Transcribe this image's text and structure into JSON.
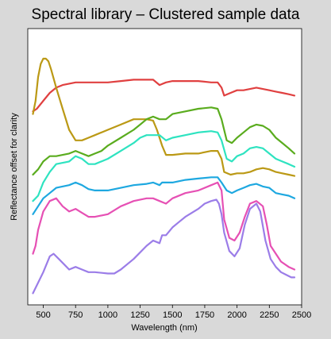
{
  "chart_data": {
    "type": "line",
    "title": "Spectral library – Clustered sample data",
    "xlabel": "Wavelength (nm)",
    "ylabel": "Reflectance offset for clarity",
    "xlim": [
      380,
      2500
    ],
    "ylim": [
      0,
      1
    ],
    "xticks": [
      500,
      750,
      1000,
      1250,
      1500,
      1750,
      2000,
      2250,
      2500
    ],
    "xtick_labels": [
      "500",
      "750",
      "1000",
      "1250",
      "1500",
      "1750",
      "2000",
      "2250",
      "2500"
    ],
    "yticks_shown": false,
    "grid": false,
    "legend": "none",
    "series": [
      {
        "color": "#e04040",
        "points": [
          [
            420,
            0.71
          ],
          [
            450,
            0.72
          ],
          [
            500,
            0.75
          ],
          [
            550,
            0.78
          ],
          [
            600,
            0.8
          ],
          [
            650,
            0.81
          ],
          [
            700,
            0.815
          ],
          [
            750,
            0.82
          ],
          [
            800,
            0.82
          ],
          [
            900,
            0.82
          ],
          [
            1000,
            0.82
          ],
          [
            1100,
            0.825
          ],
          [
            1200,
            0.83
          ],
          [
            1300,
            0.83
          ],
          [
            1350,
            0.83
          ],
          [
            1400,
            0.81
          ],
          [
            1450,
            0.82
          ],
          [
            1500,
            0.825
          ],
          [
            1600,
            0.825
          ],
          [
            1700,
            0.825
          ],
          [
            1800,
            0.82
          ],
          [
            1850,
            0.82
          ],
          [
            1880,
            0.8
          ],
          [
            1900,
            0.77
          ],
          [
            1950,
            0.78
          ],
          [
            2000,
            0.79
          ],
          [
            2050,
            0.79
          ],
          [
            2100,
            0.795
          ],
          [
            2150,
            0.8
          ],
          [
            2200,
            0.795
          ],
          [
            2250,
            0.79
          ],
          [
            2300,
            0.785
          ],
          [
            2350,
            0.78
          ],
          [
            2400,
            0.775
          ],
          [
            2445,
            0.77
          ]
        ]
      },
      {
        "color": "#bb9915",
        "points": [
          [
            420,
            0.7
          ],
          [
            440,
            0.75
          ],
          [
            460,
            0.84
          ],
          [
            480,
            0.89
          ],
          [
            500,
            0.91
          ],
          [
            520,
            0.91
          ],
          [
            540,
            0.9
          ],
          [
            560,
            0.87
          ],
          [
            600,
            0.8
          ],
          [
            650,
            0.72
          ],
          [
            700,
            0.64
          ],
          [
            750,
            0.6
          ],
          [
            800,
            0.6
          ],
          [
            850,
            0.61
          ],
          [
            900,
            0.62
          ],
          [
            1000,
            0.64
          ],
          [
            1100,
            0.66
          ],
          [
            1200,
            0.68
          ],
          [
            1250,
            0.68
          ],
          [
            1300,
            0.68
          ],
          [
            1350,
            0.675
          ],
          [
            1380,
            0.64
          ],
          [
            1420,
            0.58
          ],
          [
            1450,
            0.545
          ],
          [
            1500,
            0.545
          ],
          [
            1600,
            0.55
          ],
          [
            1700,
            0.55
          ],
          [
            1800,
            0.56
          ],
          [
            1850,
            0.56
          ],
          [
            1880,
            0.53
          ],
          [
            1900,
            0.48
          ],
          [
            1950,
            0.47
          ],
          [
            2000,
            0.475
          ],
          [
            2050,
            0.475
          ],
          [
            2100,
            0.48
          ],
          [
            2150,
            0.49
          ],
          [
            2200,
            0.495
          ],
          [
            2250,
            0.49
          ],
          [
            2300,
            0.48
          ],
          [
            2350,
            0.475
          ],
          [
            2400,
            0.47
          ],
          [
            2445,
            0.465
          ]
        ]
      },
      {
        "color": "#5aac1e",
        "points": [
          [
            420,
            0.47
          ],
          [
            460,
            0.49
          ],
          [
            500,
            0.52
          ],
          [
            550,
            0.54
          ],
          [
            600,
            0.54
          ],
          [
            700,
            0.55
          ],
          [
            750,
            0.56
          ],
          [
            800,
            0.55
          ],
          [
            850,
            0.54
          ],
          [
            900,
            0.55
          ],
          [
            950,
            0.56
          ],
          [
            1000,
            0.58
          ],
          [
            1100,
            0.61
          ],
          [
            1200,
            0.64
          ],
          [
            1250,
            0.66
          ],
          [
            1300,
            0.68
          ],
          [
            1350,
            0.69
          ],
          [
            1400,
            0.68
          ],
          [
            1450,
            0.68
          ],
          [
            1500,
            0.7
          ],
          [
            1600,
            0.71
          ],
          [
            1700,
            0.72
          ],
          [
            1800,
            0.725
          ],
          [
            1850,
            0.72
          ],
          [
            1880,
            0.68
          ],
          [
            1920,
            0.6
          ],
          [
            1960,
            0.59
          ],
          [
            2000,
            0.61
          ],
          [
            2050,
            0.63
          ],
          [
            2100,
            0.65
          ],
          [
            2150,
            0.66
          ],
          [
            2200,
            0.655
          ],
          [
            2250,
            0.64
          ],
          [
            2300,
            0.61
          ],
          [
            2350,
            0.59
          ],
          [
            2400,
            0.57
          ],
          [
            2445,
            0.55
          ]
        ]
      },
      {
        "color": "#2ee3c0",
        "points": [
          [
            420,
            0.37
          ],
          [
            460,
            0.39
          ],
          [
            500,
            0.44
          ],
          [
            550,
            0.48
          ],
          [
            600,
            0.51
          ],
          [
            700,
            0.52
          ],
          [
            750,
            0.54
          ],
          [
            800,
            0.53
          ],
          [
            850,
            0.51
          ],
          [
            900,
            0.51
          ],
          [
            1000,
            0.53
          ],
          [
            1100,
            0.56
          ],
          [
            1200,
            0.59
          ],
          [
            1250,
            0.61
          ],
          [
            1300,
            0.62
          ],
          [
            1400,
            0.62
          ],
          [
            1450,
            0.6
          ],
          [
            1500,
            0.61
          ],
          [
            1600,
            0.62
          ],
          [
            1700,
            0.63
          ],
          [
            1800,
            0.635
          ],
          [
            1850,
            0.63
          ],
          [
            1880,
            0.6
          ],
          [
            1920,
            0.53
          ],
          [
            1960,
            0.52
          ],
          [
            2000,
            0.54
          ],
          [
            2050,
            0.55
          ],
          [
            2100,
            0.57
          ],
          [
            2150,
            0.575
          ],
          [
            2200,
            0.57
          ],
          [
            2250,
            0.55
          ],
          [
            2300,
            0.53
          ],
          [
            2350,
            0.52
          ],
          [
            2400,
            0.51
          ],
          [
            2445,
            0.5
          ]
        ]
      },
      {
        "color": "#1ea8e0",
        "points": [
          [
            420,
            0.32
          ],
          [
            460,
            0.35
          ],
          [
            500,
            0.38
          ],
          [
            550,
            0.4
          ],
          [
            600,
            0.42
          ],
          [
            700,
            0.43
          ],
          [
            750,
            0.44
          ],
          [
            800,
            0.43
          ],
          [
            850,
            0.415
          ],
          [
            900,
            0.41
          ],
          [
            1000,
            0.41
          ],
          [
            1100,
            0.42
          ],
          [
            1200,
            0.43
          ],
          [
            1300,
            0.435
          ],
          [
            1350,
            0.44
          ],
          [
            1400,
            0.43
          ],
          [
            1420,
            0.44
          ],
          [
            1450,
            0.44
          ],
          [
            1500,
            0.44
          ],
          [
            1600,
            0.45
          ],
          [
            1700,
            0.455
          ],
          [
            1800,
            0.46
          ],
          [
            1850,
            0.46
          ],
          [
            1880,
            0.44
          ],
          [
            1920,
            0.41
          ],
          [
            1960,
            0.4
          ],
          [
            2000,
            0.41
          ],
          [
            2050,
            0.42
          ],
          [
            2100,
            0.43
          ],
          [
            2150,
            0.435
          ],
          [
            2200,
            0.425
          ],
          [
            2250,
            0.42
          ],
          [
            2300,
            0.4
          ],
          [
            2350,
            0.395
          ],
          [
            2400,
            0.39
          ],
          [
            2445,
            0.38
          ]
        ]
      },
      {
        "color": "#e650b4",
        "points": [
          [
            420,
            0.17
          ],
          [
            440,
            0.2
          ],
          [
            460,
            0.26
          ],
          [
            500,
            0.33
          ],
          [
            550,
            0.37
          ],
          [
            600,
            0.38
          ],
          [
            650,
            0.35
          ],
          [
            700,
            0.33
          ],
          [
            750,
            0.34
          ],
          [
            800,
            0.325
          ],
          [
            850,
            0.31
          ],
          [
            900,
            0.31
          ],
          [
            1000,
            0.32
          ],
          [
            1100,
            0.35
          ],
          [
            1200,
            0.37
          ],
          [
            1300,
            0.38
          ],
          [
            1350,
            0.38
          ],
          [
            1400,
            0.37
          ],
          [
            1450,
            0.36
          ],
          [
            1500,
            0.38
          ],
          [
            1600,
            0.4
          ],
          [
            1700,
            0.41
          ],
          [
            1800,
            0.43
          ],
          [
            1850,
            0.44
          ],
          [
            1880,
            0.41
          ],
          [
            1900,
            0.3
          ],
          [
            1940,
            0.23
          ],
          [
            1980,
            0.22
          ],
          [
            2020,
            0.25
          ],
          [
            2060,
            0.31
          ],
          [
            2100,
            0.36
          ],
          [
            2150,
            0.37
          ],
          [
            2200,
            0.35
          ],
          [
            2230,
            0.28
          ],
          [
            2260,
            0.2
          ],
          [
            2300,
            0.17
          ],
          [
            2340,
            0.14
          ],
          [
            2400,
            0.12
          ],
          [
            2445,
            0.11
          ]
        ]
      },
      {
        "color": "#9b7de8",
        "points": [
          [
            420,
            0.02
          ],
          [
            450,
            0.05
          ],
          [
            500,
            0.1
          ],
          [
            550,
            0.16
          ],
          [
            580,
            0.17
          ],
          [
            620,
            0.15
          ],
          [
            660,
            0.13
          ],
          [
            700,
            0.11
          ],
          [
            750,
            0.12
          ],
          [
            800,
            0.11
          ],
          [
            850,
            0.1
          ],
          [
            900,
            0.1
          ],
          [
            1000,
            0.095
          ],
          [
            1050,
            0.095
          ],
          [
            1100,
            0.11
          ],
          [
            1200,
            0.15
          ],
          [
            1300,
            0.2
          ],
          [
            1350,
            0.22
          ],
          [
            1400,
            0.21
          ],
          [
            1420,
            0.24
          ],
          [
            1450,
            0.24
          ],
          [
            1500,
            0.27
          ],
          [
            1550,
            0.29
          ],
          [
            1600,
            0.31
          ],
          [
            1700,
            0.34
          ],
          [
            1750,
            0.36
          ],
          [
            1800,
            0.37
          ],
          [
            1840,
            0.375
          ],
          [
            1860,
            0.36
          ],
          [
            1880,
            0.32
          ],
          [
            1900,
            0.25
          ],
          [
            1940,
            0.18
          ],
          [
            1980,
            0.16
          ],
          [
            2020,
            0.19
          ],
          [
            2060,
            0.28
          ],
          [
            2100,
            0.34
          ],
          [
            2150,
            0.36
          ],
          [
            2180,
            0.33
          ],
          [
            2220,
            0.22
          ],
          [
            2260,
            0.15
          ],
          [
            2300,
            0.12
          ],
          [
            2340,
            0.1
          ],
          [
            2380,
            0.09
          ],
          [
            2420,
            0.08
          ],
          [
            2445,
            0.08
          ]
        ]
      }
    ]
  }
}
